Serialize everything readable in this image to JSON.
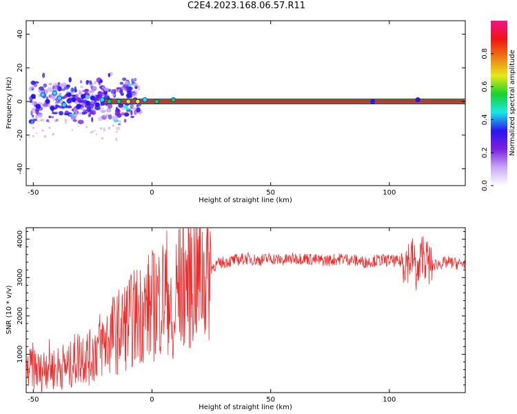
{
  "figure": {
    "title": "C2E4.2023.168.06.57.R11"
  },
  "chart_data": [
    {
      "type": "heatmap",
      "xlabel": "Height of straight line (km)",
      "ylabel": "Frequency (Hz)",
      "xlim": [
        -53,
        132
      ],
      "ylim": [
        -50,
        48
      ],
      "x_ticks": [
        -50,
        0,
        50,
        100
      ],
      "y_ticks": [
        40,
        20,
        0,
        -20,
        -40
      ],
      "colorbar": {
        "label": "Normalized spectral amplitude",
        "ticks": [
          "0.0",
          "0.2",
          "0.4",
          "0.6",
          "0.8"
        ],
        "range": [
          0,
          1
        ],
        "colors": [
          "#ffffff",
          "#c8a8f5",
          "#7a1fe0",
          "#2b16f0",
          "#19e8e8",
          "#18d22a",
          "#e8e817",
          "#f07a14",
          "#f01414",
          "#f0148a"
        ]
      },
      "dominant_band": {
        "frequency_hz": 0,
        "x_start": -20,
        "x_end": 132,
        "amplitude": 0.95
      },
      "hotspots": [
        {
          "x": -50,
          "y": 3,
          "a": 0.3
        },
        {
          "x": -48,
          "y": -3,
          "a": 0.35
        },
        {
          "x": -46,
          "y": 4,
          "a": 0.4
        },
        {
          "x": -44,
          "y": 0,
          "a": 0.38
        },
        {
          "x": -42,
          "y": -4,
          "a": 0.3
        },
        {
          "x": -41,
          "y": 5,
          "a": 0.42
        },
        {
          "x": -39,
          "y": 2,
          "a": 0.45
        },
        {
          "x": -37,
          "y": -2,
          "a": 0.4
        },
        {
          "x": -35,
          "y": 4,
          "a": 0.36
        },
        {
          "x": -33,
          "y": 1,
          "a": 0.33
        },
        {
          "x": -31,
          "y": -3,
          "a": 0.3
        },
        {
          "x": -29,
          "y": 3,
          "a": 0.38
        },
        {
          "x": -27,
          "y": -1,
          "a": 0.32
        },
        {
          "x": -25,
          "y": 2,
          "a": 0.3
        },
        {
          "x": -23,
          "y": -2,
          "a": 0.34
        },
        {
          "x": -21,
          "y": 1,
          "a": 0.4
        },
        {
          "x": -18,
          "y": 0,
          "a": 0.5
        },
        {
          "x": -14,
          "y": 0,
          "a": 0.6
        },
        {
          "x": -10,
          "y": 0,
          "a": 0.65
        },
        {
          "x": -6,
          "y": 0,
          "a": 0.7
        },
        {
          "x": -3,
          "y": 1,
          "a": 0.45
        },
        {
          "x": 2,
          "y": 0,
          "a": 0.6
        },
        {
          "x": 9,
          "y": 1,
          "a": 0.55
        },
        {
          "x": 93,
          "y": 0,
          "a": 0.35
        },
        {
          "x": 112,
          "y": 1,
          "a": 0.35
        }
      ]
    },
    {
      "type": "line",
      "xlabel": "Height of straight line (km)",
      "ylabel": "SNR (10 * v/v)",
      "xlim": [
        -53,
        132
      ],
      "ylim": [
        0,
        4300
      ],
      "x_ticks": [
        -50,
        0,
        50,
        100
      ],
      "y_ticks": [
        1000,
        2000,
        3000,
        4000
      ],
      "series": [
        {
          "color": "#ee2a2a",
          "x": [
            -53,
            -50,
            -47,
            -44,
            -41,
            -38,
            -35,
            -32,
            -29,
            -26,
            -23,
            -20,
            -17,
            -14,
            -11,
            -8,
            -5,
            -2,
            1,
            4,
            7,
            9,
            10,
            12,
            14,
            16,
            18,
            20,
            22,
            24,
            26,
            28,
            30,
            35,
            40,
            45,
            50,
            55,
            60,
            65,
            70,
            75,
            80,
            85,
            90,
            95,
            100,
            105,
            110,
            112,
            114,
            116,
            118,
            120,
            125,
            130,
            132
          ],
          "y": [
            500,
            700,
            500,
            800,
            600,
            700,
            650,
            900,
            1000,
            900,
            1200,
            1300,
            1500,
            1600,
            1800,
            1900,
            2100,
            2200,
            2300,
            2500,
            2700,
            1000,
            2600,
            2800,
            2900,
            3000,
            3100,
            3000,
            3100,
            3200,
            3300,
            3350,
            3400,
            3450,
            3500,
            3450,
            3500,
            3450,
            3500,
            3500,
            3450,
            3450,
            3500,
            3450,
            3400,
            3450,
            3450,
            3400,
            3500,
            3000,
            3700,
            3400,
            3300,
            3350,
            3400,
            3350,
            3400
          ]
        }
      ]
    }
  ]
}
